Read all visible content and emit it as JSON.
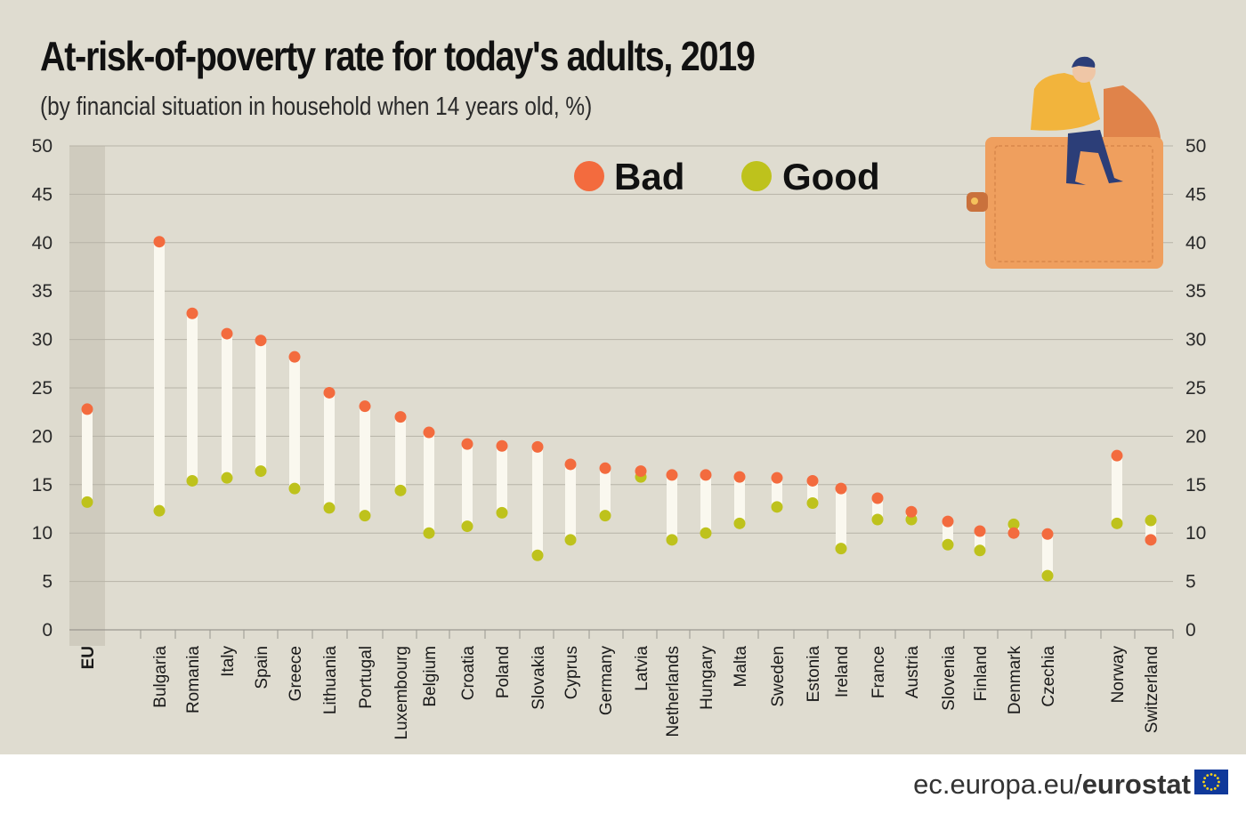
{
  "title": "At-risk-of-poverty rate for today's adults, 2019",
  "subtitle": "(by financial situation in household when 14 years old, %)",
  "footer": {
    "site": "ec.europa.eu/",
    "brand": "eurostat"
  },
  "colors": {
    "bad": "#f36b3e",
    "good": "#bec21c",
    "stem": "#faf8ef",
    "background": "#dfdcd0",
    "eu_band": "#cfcbbe"
  },
  "icons": [
    "person-on-wallet-illustration",
    "eu-flag-icon"
  ],
  "chart_data": {
    "type": "dot-range",
    "title": "At-risk-of-poverty rate for today's adults, 2019",
    "subtitle": "(by financial situation in household when 14 years old, %)",
    "ylim": [
      0,
      50
    ],
    "yticks": [
      0,
      5,
      10,
      15,
      20,
      25,
      30,
      35,
      40,
      45,
      50
    ],
    "grid": true,
    "legend_position": "top-right",
    "categories": [
      "EU",
      "Bulgaria",
      "Romania",
      "Italy",
      "Spain",
      "Greece",
      "Lithuania",
      "Portugal",
      "Luxembourg",
      "Belgium",
      "Croatia",
      "Poland",
      "Slovakia",
      "Cyprus",
      "Germany",
      "Latvia",
      "Netherlands",
      "Hungary",
      "Malta",
      "Sweden",
      "Estonia",
      "Ireland",
      "France",
      "Austria",
      "Slovenia",
      "Finland",
      "Denmark",
      "Czechia",
      "Norway",
      "Switzerland"
    ],
    "series": [
      {
        "name": "Bad",
        "color": "#f36b3e",
        "values": [
          22.8,
          40.1,
          32.7,
          30.6,
          29.9,
          28.2,
          24.5,
          23.1,
          22.0,
          20.4,
          19.2,
          19.0,
          18.9,
          17.1,
          16.7,
          16.4,
          16.0,
          16.0,
          15.8,
          15.7,
          15.4,
          14.6,
          13.6,
          12.2,
          11.2,
          10.2,
          10.0,
          9.9,
          18.0,
          9.3
        ]
      },
      {
        "name": "Good",
        "color": "#bec21c",
        "values": [
          13.2,
          12.3,
          15.4,
          15.7,
          16.4,
          14.6,
          12.6,
          11.8,
          14.4,
          10.0,
          10.7,
          12.1,
          7.7,
          9.3,
          11.8,
          15.8,
          9.3,
          10.0,
          11.0,
          12.7,
          13.1,
          8.4,
          11.4,
          11.4,
          8.8,
          8.2,
          10.9,
          5.6,
          11.0,
          11.3
        ]
      }
    ]
  }
}
